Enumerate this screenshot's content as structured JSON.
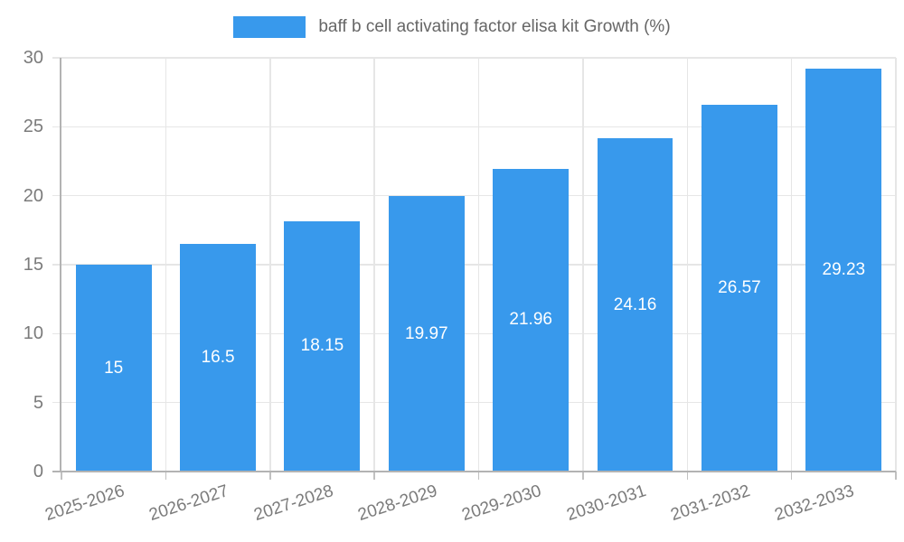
{
  "legend": {
    "label": "baff b cell activating factor elisa kit Growth (%)"
  },
  "chart_data": {
    "type": "bar",
    "title": "baff b cell activating factor elisa kit Growth (%)",
    "xlabel": "",
    "ylabel": "",
    "categories": [
      "2025-2026",
      "2026-2027",
      "2027-2028",
      "2028-2029",
      "2029-2030",
      "2030-2031",
      "2031-2032",
      "2032-2033"
    ],
    "values": [
      15,
      16.5,
      18.15,
      19.97,
      21.96,
      24.16,
      26.57,
      29.23
    ],
    "value_labels": [
      "15",
      "16.5",
      "18.15",
      "19.97",
      "21.96",
      "24.16",
      "26.57",
      "29.23"
    ],
    "ylim": [
      0,
      30
    ],
    "yticks": [
      0,
      5,
      10,
      15,
      20,
      25,
      30
    ],
    "legend_position": "top",
    "grid": true,
    "colors": {
      "bar": "#3899ec",
      "value_label": "#ffffff",
      "axis": "#b3b3b3",
      "grid": "#e6e6e6",
      "x_tick_mark": "#c1c1c1",
      "tick_text": "#7b7b7b",
      "legend_text": "#666666"
    }
  }
}
